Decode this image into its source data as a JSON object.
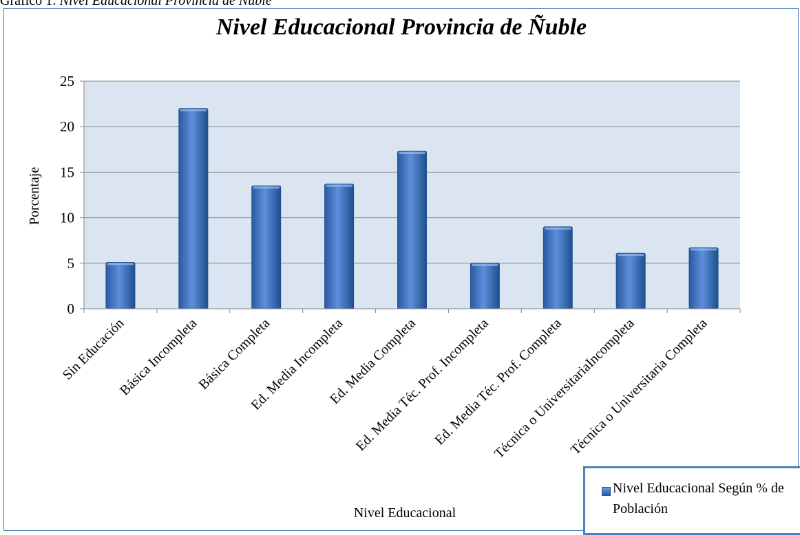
{
  "caption": {
    "label": "Grafico 1:",
    "rest": "Nivel Educacional Provincia de Ñuble"
  },
  "chart_data": {
    "type": "bar",
    "title": "Nivel Educacional Provincia de Ñuble",
    "xlabel": "Nivel Educacional",
    "ylabel": "Porcentaje",
    "ylim": [
      0,
      25
    ],
    "yticks": [
      0,
      5,
      10,
      15,
      20,
      25
    ],
    "grid": true,
    "legend_position": "bottom-right",
    "categories": [
      "Sin Educación",
      "Básica Incompleta",
      "Básica Completa",
      "Ed. Media Incompleta",
      "Ed. Media Completa",
      "Ed. Media Téc. Prof. Incompleta",
      "Ed. Media Téc. Prof. Completa",
      "Técnica o UniversitariaIncompleta",
      "Técnica o Universitaria Completa"
    ],
    "series": [
      {
        "name": "Nivel Educacional Según % de Población",
        "values": [
          5.1,
          22.0,
          13.5,
          13.7,
          17.3,
          5.0,
          9.0,
          6.1,
          6.7
        ]
      }
    ],
    "colors": {
      "bar": "#3f72bf",
      "bar_dark": "#1f4f8f",
      "plot_bg": "#dbe5f1",
      "grid": "#868686"
    }
  }
}
